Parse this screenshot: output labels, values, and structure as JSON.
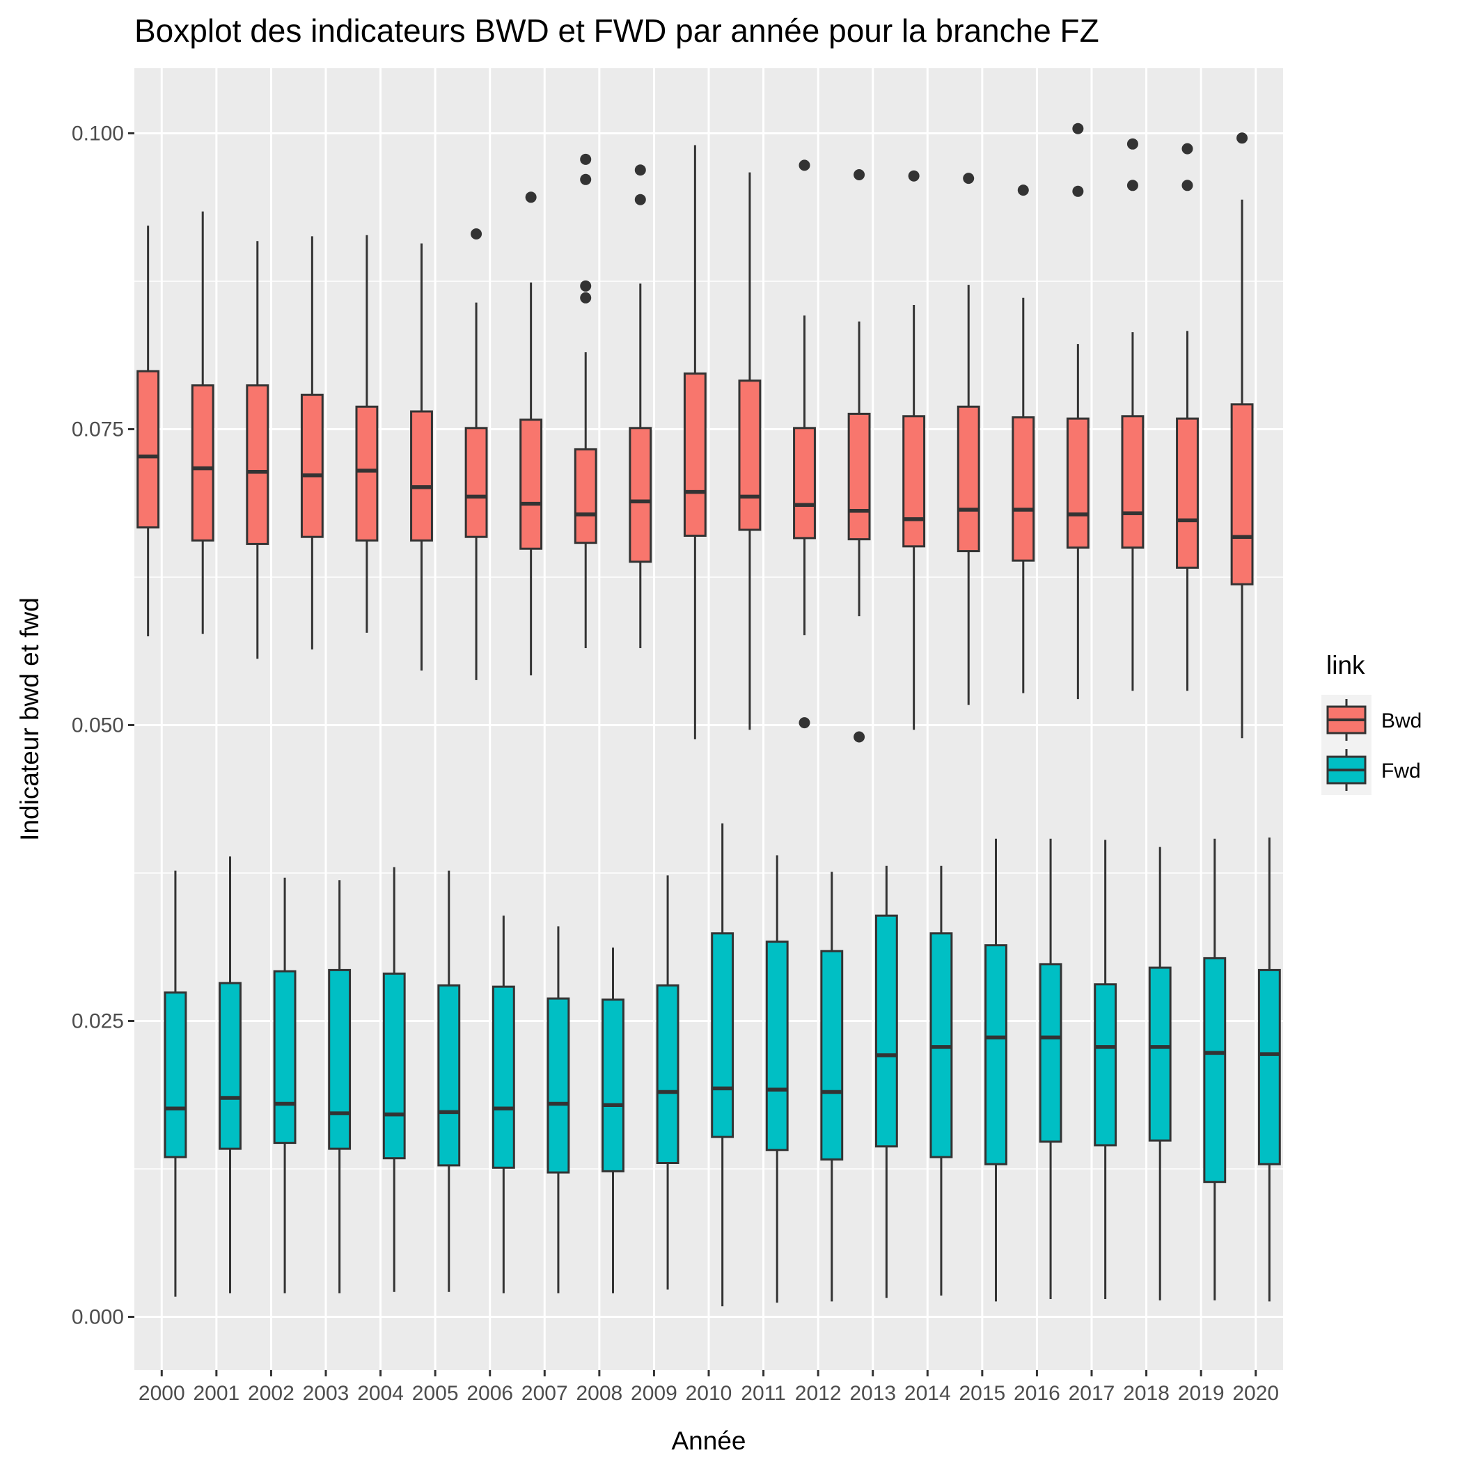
{
  "chart_data": {
    "type": "boxplot",
    "title": "Boxplot des indicateurs BWD et FWD par année pour la branche FZ",
    "xlabel": "Année",
    "ylabel": "Indicateur bwd et fwd",
    "categories": [
      "2000",
      "2001",
      "2002",
      "2003",
      "2004",
      "2005",
      "2006",
      "2007",
      "2008",
      "2009",
      "2010",
      "2011",
      "2012",
      "2013",
      "2014",
      "2015",
      "2016",
      "2017",
      "2018",
      "2019",
      "2020"
    ],
    "ylim": [
      -0.0045,
      0.1055
    ],
    "yticks": [
      0.0,
      0.025,
      0.05,
      0.075,
      0.1
    ],
    "ytick_labels": [
      "0.000",
      "0.025",
      "0.050",
      "0.075",
      "0.100"
    ],
    "background": "#ebebeb",
    "grid": true,
    "legend": {
      "title": "link",
      "position": "right"
    },
    "series": [
      {
        "name": "Bwd",
        "color": "#f8766d",
        "boxes": [
          {
            "min": 0.0575,
            "q1": 0.0667,
            "median": 0.0727,
            "q3": 0.0799,
            "max": 0.0922,
            "outliers": []
          },
          {
            "min": 0.0577,
            "q1": 0.0656,
            "median": 0.0717,
            "q3": 0.0787,
            "max": 0.0934,
            "outliers": []
          },
          {
            "min": 0.0556,
            "q1": 0.0653,
            "median": 0.0714,
            "q3": 0.0787,
            "max": 0.0909,
            "outliers": []
          },
          {
            "min": 0.0564,
            "q1": 0.0659,
            "median": 0.0711,
            "q3": 0.0779,
            "max": 0.0913,
            "outliers": []
          },
          {
            "min": 0.0578,
            "q1": 0.0656,
            "median": 0.0715,
            "q3": 0.0769,
            "max": 0.0914,
            "outliers": []
          },
          {
            "min": 0.0546,
            "q1": 0.0656,
            "median": 0.0701,
            "q3": 0.0765,
            "max": 0.0907,
            "outliers": []
          },
          {
            "min": 0.0538,
            "q1": 0.0659,
            "median": 0.0693,
            "q3": 0.0751,
            "max": 0.0857,
            "outliers": [
              0.0915
            ]
          },
          {
            "min": 0.0542,
            "q1": 0.0649,
            "median": 0.0687,
            "q3": 0.0758,
            "max": 0.0874,
            "outliers": [
              0.0946
            ]
          },
          {
            "min": 0.0565,
            "q1": 0.0654,
            "median": 0.0678,
            "q3": 0.0733,
            "max": 0.0815,
            "outliers": [
              0.0978,
              0.0961,
              0.0871,
              0.0861
            ]
          },
          {
            "min": 0.0565,
            "q1": 0.0638,
            "median": 0.0689,
            "q3": 0.0751,
            "max": 0.0873,
            "outliers": [
              0.0969,
              0.0944
            ]
          },
          {
            "min": 0.0488,
            "q1": 0.066,
            "median": 0.0697,
            "q3": 0.0797,
            "max": 0.099,
            "outliers": []
          },
          {
            "min": 0.0496,
            "q1": 0.0665,
            "median": 0.0693,
            "q3": 0.0791,
            "max": 0.0967,
            "outliers": []
          },
          {
            "min": 0.0576,
            "q1": 0.0658,
            "median": 0.0686,
            "q3": 0.0751,
            "max": 0.0846,
            "outliers": [
              0.0973,
              0.0502
            ]
          },
          {
            "min": 0.0592,
            "q1": 0.0657,
            "median": 0.0681,
            "q3": 0.0763,
            "max": 0.0841,
            "outliers": [
              0.0965,
              0.049
            ]
          },
          {
            "min": 0.0496,
            "q1": 0.0651,
            "median": 0.0674,
            "q3": 0.0761,
            "max": 0.0855,
            "outliers": [
              0.0964
            ]
          },
          {
            "min": 0.0517,
            "q1": 0.0647,
            "median": 0.0682,
            "q3": 0.0769,
            "max": 0.0872,
            "outliers": [
              0.0962
            ]
          },
          {
            "min": 0.0527,
            "q1": 0.0639,
            "median": 0.0682,
            "q3": 0.076,
            "max": 0.0861,
            "outliers": [
              0.0952
            ]
          },
          {
            "min": 0.0522,
            "q1": 0.065,
            "median": 0.0678,
            "q3": 0.0759,
            "max": 0.0822,
            "outliers": [
              0.1004,
              0.0951
            ]
          },
          {
            "min": 0.0529,
            "q1": 0.065,
            "median": 0.0679,
            "q3": 0.0761,
            "max": 0.0832,
            "outliers": [
              0.0991,
              0.0956
            ]
          },
          {
            "min": 0.0529,
            "q1": 0.0633,
            "median": 0.0673,
            "q3": 0.0759,
            "max": 0.0833,
            "outliers": [
              0.0987,
              0.0956
            ]
          },
          {
            "min": 0.0489,
            "q1": 0.0619,
            "median": 0.0659,
            "q3": 0.0771,
            "max": 0.0944,
            "outliers": [
              0.0996
            ]
          }
        ]
      },
      {
        "name": "Fwd",
        "color": "#00bfc4",
        "boxes": [
          {
            "min": 0.0017,
            "q1": 0.0135,
            "median": 0.0176,
            "q3": 0.0274,
            "max": 0.0377,
            "outliers": []
          },
          {
            "min": 0.002,
            "q1": 0.0142,
            "median": 0.0185,
            "q3": 0.0282,
            "max": 0.0389,
            "outliers": []
          },
          {
            "min": 0.002,
            "q1": 0.0147,
            "median": 0.018,
            "q3": 0.0292,
            "max": 0.0371,
            "outliers": []
          },
          {
            "min": 0.002,
            "q1": 0.0142,
            "median": 0.0172,
            "q3": 0.0293,
            "max": 0.0369,
            "outliers": []
          },
          {
            "min": 0.0021,
            "q1": 0.0134,
            "median": 0.0171,
            "q3": 0.029,
            "max": 0.038,
            "outliers": []
          },
          {
            "min": 0.0021,
            "q1": 0.0128,
            "median": 0.0173,
            "q3": 0.028,
            "max": 0.0377,
            "outliers": []
          },
          {
            "min": 0.002,
            "q1": 0.0126,
            "median": 0.0176,
            "q3": 0.0279,
            "max": 0.0339,
            "outliers": []
          },
          {
            "min": 0.002,
            "q1": 0.0122,
            "median": 0.018,
            "q3": 0.0269,
            "max": 0.033,
            "outliers": []
          },
          {
            "min": 0.002,
            "q1": 0.0123,
            "median": 0.0179,
            "q3": 0.0268,
            "max": 0.0312,
            "outliers": []
          },
          {
            "min": 0.0023,
            "q1": 0.013,
            "median": 0.019,
            "q3": 0.028,
            "max": 0.0373,
            "outliers": []
          },
          {
            "min": 0.0009,
            "q1": 0.0152,
            "median": 0.0193,
            "q3": 0.0324,
            "max": 0.0417,
            "outliers": []
          },
          {
            "min": 0.0012,
            "q1": 0.0141,
            "median": 0.0192,
            "q3": 0.0317,
            "max": 0.039,
            "outliers": []
          },
          {
            "min": 0.0013,
            "q1": 0.0133,
            "median": 0.019,
            "q3": 0.0309,
            "max": 0.0376,
            "outliers": []
          },
          {
            "min": 0.0016,
            "q1": 0.0144,
            "median": 0.0221,
            "q3": 0.0339,
            "max": 0.0381,
            "outliers": []
          },
          {
            "min": 0.0018,
            "q1": 0.0135,
            "median": 0.0228,
            "q3": 0.0324,
            "max": 0.0381,
            "outliers": []
          },
          {
            "min": 0.0013,
            "q1": 0.0129,
            "median": 0.0236,
            "q3": 0.0314,
            "max": 0.0404,
            "outliers": []
          },
          {
            "min": 0.0015,
            "q1": 0.0148,
            "median": 0.0236,
            "q3": 0.0298,
            "max": 0.0404,
            "outliers": []
          },
          {
            "min": 0.0015,
            "q1": 0.0145,
            "median": 0.0228,
            "q3": 0.0281,
            "max": 0.0403,
            "outliers": []
          },
          {
            "min": 0.0014,
            "q1": 0.0149,
            "median": 0.0228,
            "q3": 0.0295,
            "max": 0.0397,
            "outliers": []
          },
          {
            "min": 0.0014,
            "q1": 0.0114,
            "median": 0.0223,
            "q3": 0.0303,
            "max": 0.0404,
            "outliers": []
          },
          {
            "min": 0.0013,
            "q1": 0.0129,
            "median": 0.0222,
            "q3": 0.0293,
            "max": 0.0405,
            "outliers": []
          }
        ]
      }
    ]
  }
}
